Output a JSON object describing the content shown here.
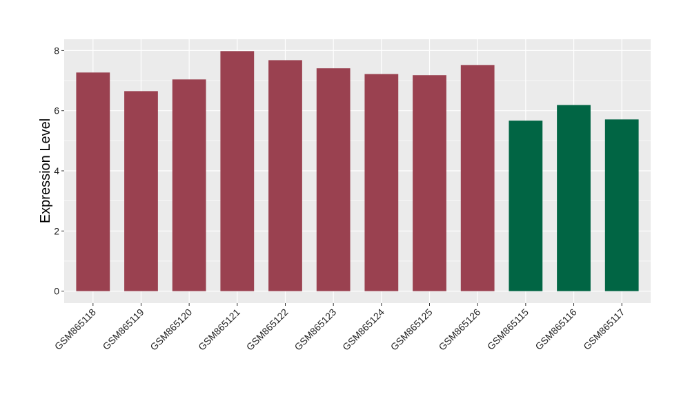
{
  "chart_data": {
    "type": "bar",
    "title": "",
    "xlabel": "",
    "ylabel": "Expression Level",
    "ylim": [
      0,
      8.4
    ],
    "yticks": [
      0,
      2,
      4,
      6,
      8
    ],
    "grid": true,
    "categories": [
      "GSM865118",
      "GSM865119",
      "GSM865120",
      "GSM865121",
      "GSM865122",
      "GSM865123",
      "GSM865124",
      "GSM865125",
      "GSM865126",
      "GSM865115",
      "GSM865116",
      "GSM865117"
    ],
    "values": [
      7.27,
      6.65,
      7.04,
      7.98,
      7.68,
      7.41,
      7.22,
      7.18,
      7.52,
      5.67,
      6.19,
      5.71
    ],
    "groups": [
      "a",
      "a",
      "a",
      "a",
      "a",
      "a",
      "a",
      "a",
      "a",
      "b",
      "b",
      "b"
    ],
    "colors": {
      "a": "#9a4150",
      "b": "#016544"
    },
    "panel_background": "#ebebeb",
    "grid_color": "#ffffff"
  }
}
